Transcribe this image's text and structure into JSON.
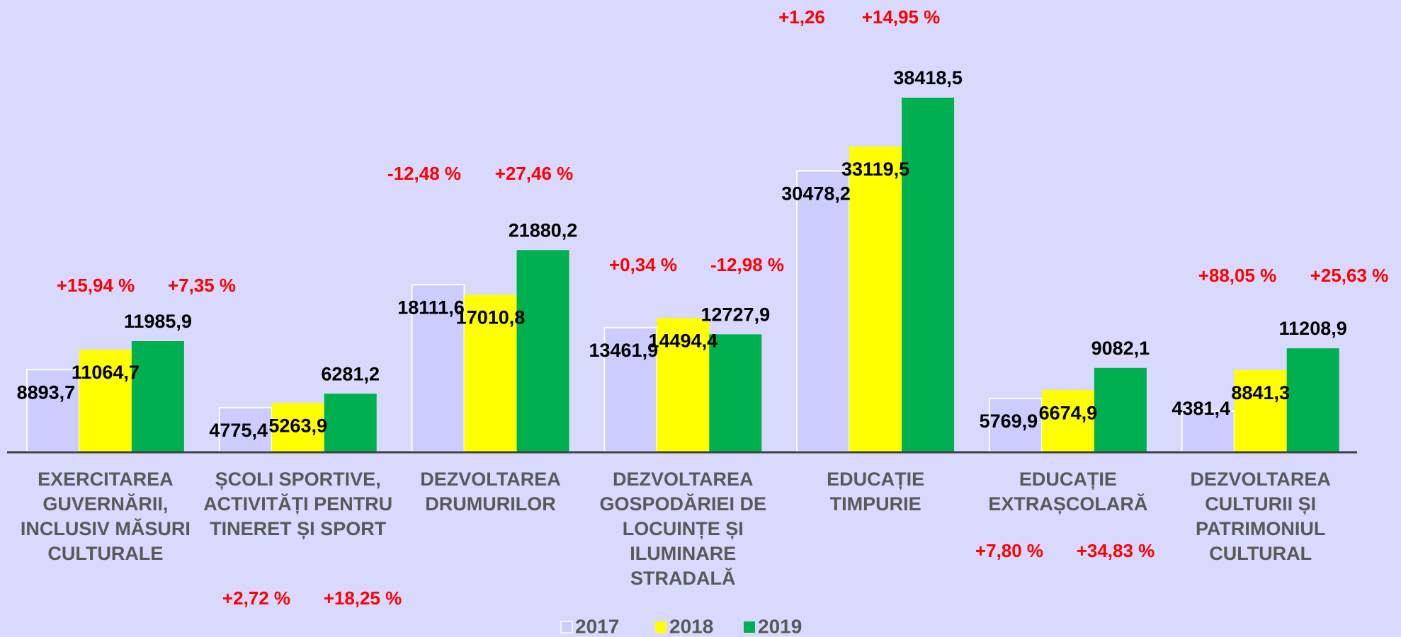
{
  "chart_data": {
    "type": "bar",
    "categories": [
      "EXERCITAREA GUVERNĂRII, INCLUSIV MĂSURI CULTURALE",
      "ȘCOLI SPORTIVE, ACTIVITĂȚI PENTRU TINERET ȘI SPORT",
      "DEZVOLTAREA DRUMURILOR",
      "DEZVOLTAREA GOSPODĂRIEI DE LOCUINȚE ȘI ILUMINARE STRADALĂ",
      "EDUCAȚIE TIMPURIE",
      "EDUCAȚIE EXTRAȘCOLARĂ",
      "DEZVOLTAREA CULTURII ȘI PATRIMONIUL CULTURAL"
    ],
    "series": [
      {
        "name": "2017",
        "color": "#ccccff",
        "values": [
          8893.7,
          4775.4,
          18111.6,
          13461.9,
          30478.2,
          5769.9,
          4381.4
        ],
        "value_labels": [
          "8893,7",
          "4775,4",
          "18111,6",
          "13461,9",
          "30478,2",
          "5769,9",
          "4381,4"
        ]
      },
      {
        "name": "2018",
        "color": "#ffff00",
        "values": [
          11064.7,
          5263.9,
          17010.8,
          14494.4,
          33119.5,
          6674.9,
          8841.3
        ],
        "value_labels": [
          "11064,7",
          "5263,9",
          "17010,8",
          "14494,4",
          "33119,5",
          "6674,9",
          "8841,3"
        ]
      },
      {
        "name": "2019",
        "color": "#00b050",
        "values": [
          11985.9,
          6281.2,
          21880.2,
          12727.9,
          38418.5,
          9082.1,
          11208.9
        ],
        "value_labels": [
          "11985,9",
          "6281,2",
          "21880,2",
          "12727,9",
          "38418,5",
          "9082,1",
          "11208,9"
        ]
      }
    ],
    "annotations": [
      [
        "+15,94 %",
        "+7,35 %"
      ],
      [
        "+2,72 %",
        "+18,25 %"
      ],
      [
        "-12,48 %",
        "+27,46 %"
      ],
      [
        "+0,34 %",
        "-12,98 %"
      ],
      [
        "+1,26",
        "+14,95 %"
      ],
      [
        "+7,80 %",
        "+34,83 %"
      ],
      [
        "+88,05 %",
        "+25,63 %"
      ]
    ],
    "legend": "bottom"
  }
}
